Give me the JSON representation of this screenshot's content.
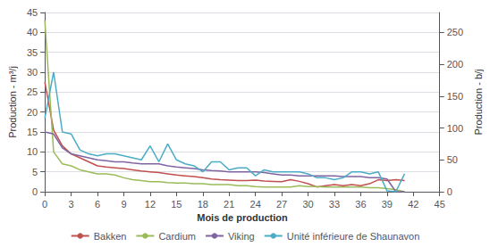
{
  "chart_data": {
    "type": "line",
    "xlabel": "Mois de production",
    "ylabel": "Production - m³/j",
    "y2label": "Production - b/j",
    "xlim": [
      0,
      45
    ],
    "xticks": [
      0,
      3,
      6,
      9,
      12,
      15,
      18,
      21,
      24,
      27,
      30,
      33,
      36,
      39,
      42,
      45
    ],
    "ylim": [
      0,
      45
    ],
    "yticks": [
      0,
      5,
      10,
      15,
      20,
      25,
      30,
      35,
      40,
      45
    ],
    "y2lim": [
      0,
      281.25
    ],
    "y2ticks": [
      0,
      50,
      100,
      150,
      200,
      250
    ],
    "grid": true,
    "legend": "bottom",
    "x": [
      0,
      1,
      2,
      3,
      4,
      5,
      6,
      7,
      8,
      9,
      10,
      11,
      12,
      13,
      14,
      15,
      16,
      17,
      18,
      19,
      20,
      21,
      22,
      23,
      24,
      25,
      26,
      27,
      28,
      29,
      30,
      31,
      32,
      33,
      34,
      35,
      36,
      37,
      38,
      39,
      40,
      41
    ],
    "series": [
      {
        "name": "Bakken",
        "color": "#c0504d",
        "values": [
          27.5,
          15.5,
          11.5,
          9.5,
          8.5,
          7.5,
          6.5,
          6.2,
          6.0,
          5.8,
          5.5,
          5.2,
          5.0,
          4.8,
          4.5,
          4.2,
          4.0,
          3.8,
          3.5,
          3.2,
          3.0,
          2.9,
          2.8,
          2.8,
          2.9,
          2.7,
          2.6,
          2.5,
          3.0,
          2.6,
          2.0,
          1.2,
          1.5,
          1.8,
          1.5,
          1.8,
          1.5,
          2.0,
          3.0,
          2.8,
          3.0,
          2.8
        ]
      },
      {
        "name": "Cardium",
        "color": "#9bbb59",
        "values": [
          43.0,
          10.0,
          7.0,
          6.5,
          5.5,
          5.0,
          4.5,
          4.5,
          4.2,
          3.5,
          3.0,
          2.8,
          2.5,
          2.5,
          2.3,
          2.2,
          2.2,
          2.0,
          2.0,
          1.8,
          1.8,
          1.8,
          1.5,
          1.5,
          1.3,
          1.2,
          1.2,
          1.2,
          1.2,
          1.5,
          1.3,
          1.3,
          1.2,
          1.2,
          1.2,
          1.2,
          1.2,
          1.0,
          1.0,
          0.8,
          0.5,
          0.0
        ]
      },
      {
        "name": "Viking",
        "color": "#8064a2",
        "values": [
          15.0,
          14.5,
          11.0,
          9.5,
          9.0,
          8.5,
          8.0,
          7.8,
          7.5,
          7.5,
          7.2,
          7.0,
          7.0,
          7.0,
          6.5,
          6.2,
          6.0,
          5.8,
          5.5,
          5.3,
          5.2,
          5.0,
          5.0,
          5.0,
          5.0,
          4.8,
          4.5,
          4.2,
          4.2,
          4.0,
          4.0,
          4.0,
          4.0,
          4.0,
          3.8,
          3.8,
          3.8,
          3.5,
          3.5,
          3.2,
          0.0,
          0.0
        ]
      },
      {
        "name": "Unité inférieure de Shaunavon",
        "color": "#4bacc6",
        "values": [
          18.5,
          30.0,
          15.0,
          14.5,
          10.5,
          9.5,
          9.0,
          9.5,
          9.5,
          9.0,
          8.5,
          8.0,
          11.5,
          7.5,
          12.0,
          8.0,
          7.0,
          6.5,
          5.0,
          7.5,
          7.5,
          5.5,
          6.0,
          6.0,
          4.0,
          5.5,
          5.0,
          5.0,
          5.0,
          5.0,
          4.5,
          3.5,
          3.5,
          3.0,
          3.5,
          5.0,
          5.0,
          4.5,
          5.0,
          0.2,
          0.0,
          4.5
        ]
      }
    ]
  }
}
